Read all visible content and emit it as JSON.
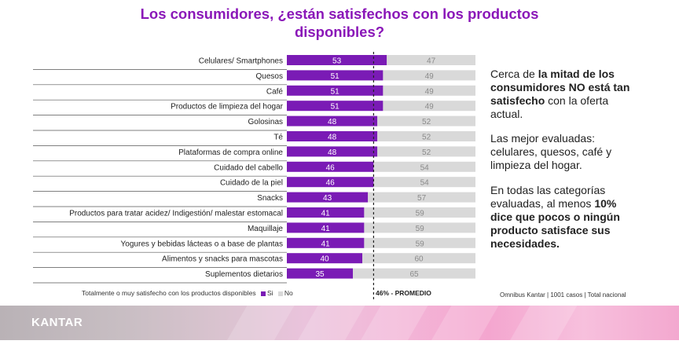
{
  "title_line1": "Los consumidores, ¿están satisfechos con los productos",
  "title_line2": "disponibles?",
  "chart_data": {
    "type": "bar",
    "orientation": "horizontal",
    "stacked": true,
    "categories": [
      "Celulares/ Smartphones",
      "Quesos",
      "Café",
      "Productos de limpieza del hogar",
      "Golosinas",
      "Té",
      "Plataformas de compra online",
      "Cuidado del cabello",
      "Cuidado de la piel",
      "Snacks",
      "Productos para tratar acidez/ Indigestión/ malestar estomacal",
      "Maquillaje",
      "Yogures y bebidas lácteas o a base de plantas",
      "Alimentos y snacks para mascotas",
      "Suplementos dietarios"
    ],
    "series": [
      {
        "name": "Si",
        "color": "#7a1bb5",
        "values": [
          53,
          51,
          51,
          51,
          48,
          48,
          48,
          46,
          46,
          43,
          41,
          41,
          41,
          40,
          35
        ]
      },
      {
        "name": "No",
        "color": "#d9d9d9",
        "values": [
          47,
          49,
          49,
          49,
          52,
          52,
          52,
          54,
          54,
          57,
          59,
          59,
          59,
          60,
          65
        ]
      }
    ],
    "average": 46,
    "xlim": [
      0,
      100
    ],
    "legend_title": "Totalmente o muy satisfecho con los productos disponibles",
    "average_label": "46% - PROMEDIO"
  },
  "side": {
    "p1_a": "Cerca de ",
    "p1_b": "la mitad de los consumidores NO está tan satisfecho",
    "p1_c": " con la oferta actual.",
    "p2": "Las mejor evaluadas: celulares, quesos, café y limpieza del hogar.",
    "p3_a": "En todas las categorías evaluadas, al menos ",
    "p3_b": "10% dice que pocos o ningún producto satisface sus necesidades."
  },
  "source": "Omnibus Kantar | 1001 casos | Total nacional",
  "brand": "KANTAR"
}
